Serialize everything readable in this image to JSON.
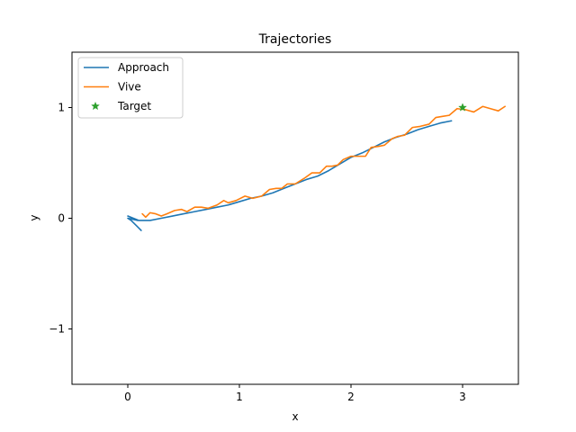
{
  "chart_data": {
    "type": "line",
    "title": "Trajectories",
    "xlabel": "x",
    "ylabel": "y",
    "xlim": [
      -0.5,
      3.5
    ],
    "ylim": [
      -1.5,
      1.5
    ],
    "xticks": [
      0,
      1,
      2,
      3
    ],
    "yticks": [
      -1,
      0,
      1
    ],
    "xtick_labels": [
      "0",
      "1",
      "2",
      "3"
    ],
    "ytick_labels": [
      "−1",
      "0",
      "1"
    ],
    "grid": false,
    "legend_position": "top-left",
    "series": [
      {
        "name": "Approach",
        "color": "#1f77b4",
        "marker": "line",
        "points": [
          [
            0.12,
            -0.11
          ],
          [
            0.08,
            -0.07
          ],
          [
            0.03,
            -0.02
          ],
          [
            0.0,
            0.0
          ],
          [
            0.09,
            -0.02
          ],
          [
            0.0,
            0.02
          ],
          [
            0.1,
            -0.02
          ],
          [
            0.2,
            -0.02
          ],
          [
            0.3,
            0.0
          ],
          [
            0.4,
            0.02
          ],
          [
            0.5,
            0.04
          ],
          [
            0.6,
            0.06
          ],
          [
            0.7,
            0.08
          ],
          [
            0.8,
            0.1
          ],
          [
            0.9,
            0.12
          ],
          [
            1.0,
            0.15
          ],
          [
            1.1,
            0.18
          ],
          [
            1.2,
            0.2
          ],
          [
            1.3,
            0.23
          ],
          [
            1.4,
            0.27
          ],
          [
            1.5,
            0.31
          ],
          [
            1.6,
            0.35
          ],
          [
            1.7,
            0.38
          ],
          [
            1.8,
            0.43
          ],
          [
            1.9,
            0.49
          ],
          [
            2.0,
            0.55
          ],
          [
            2.1,
            0.59
          ],
          [
            2.2,
            0.64
          ],
          [
            2.3,
            0.69
          ],
          [
            2.4,
            0.73
          ],
          [
            2.5,
            0.76
          ],
          [
            2.6,
            0.8
          ],
          [
            2.7,
            0.83
          ],
          [
            2.8,
            0.86
          ],
          [
            2.9,
            0.88
          ]
        ]
      },
      {
        "name": "Vive",
        "color": "#ff7f0e",
        "marker": "line",
        "points": [
          [
            0.13,
            0.04
          ],
          [
            0.16,
            0.01
          ],
          [
            0.2,
            0.05
          ],
          [
            0.25,
            0.04
          ],
          [
            0.3,
            0.02
          ],
          [
            0.35,
            0.04
          ],
          [
            0.42,
            0.07
          ],
          [
            0.48,
            0.08
          ],
          [
            0.53,
            0.06
          ],
          [
            0.6,
            0.1
          ],
          [
            0.66,
            0.1
          ],
          [
            0.72,
            0.09
          ],
          [
            0.8,
            0.12
          ],
          [
            0.86,
            0.16
          ],
          [
            0.9,
            0.14
          ],
          [
            0.97,
            0.16
          ],
          [
            1.05,
            0.2
          ],
          [
            1.12,
            0.18
          ],
          [
            1.2,
            0.2
          ],
          [
            1.27,
            0.26
          ],
          [
            1.33,
            0.27
          ],
          [
            1.38,
            0.27
          ],
          [
            1.43,
            0.31
          ],
          [
            1.5,
            0.31
          ],
          [
            1.58,
            0.36
          ],
          [
            1.65,
            0.41
          ],
          [
            1.72,
            0.41
          ],
          [
            1.78,
            0.47
          ],
          [
            1.83,
            0.47
          ],
          [
            1.88,
            0.48
          ],
          [
            1.93,
            0.53
          ],
          [
            2.0,
            0.56
          ],
          [
            2.06,
            0.56
          ],
          [
            2.13,
            0.56
          ],
          [
            2.18,
            0.64
          ],
          [
            2.25,
            0.65
          ],
          [
            2.3,
            0.66
          ],
          [
            2.37,
            0.72
          ],
          [
            2.42,
            0.74
          ],
          [
            2.48,
            0.75
          ],
          [
            2.55,
            0.82
          ],
          [
            2.62,
            0.83
          ],
          [
            2.7,
            0.85
          ],
          [
            2.76,
            0.91
          ],
          [
            2.82,
            0.92
          ],
          [
            2.88,
            0.93
          ],
          [
            2.95,
            0.99
          ],
          [
            3.03,
            0.98
          ],
          [
            3.1,
            0.96
          ],
          [
            3.18,
            1.01
          ],
          [
            3.25,
            0.99
          ],
          [
            3.32,
            0.97
          ],
          [
            3.38,
            1.01
          ]
        ]
      },
      {
        "name": "Target",
        "color": "#2ca02c",
        "marker": "star",
        "points": [
          [
            3.0,
            1.0
          ]
        ]
      }
    ]
  }
}
